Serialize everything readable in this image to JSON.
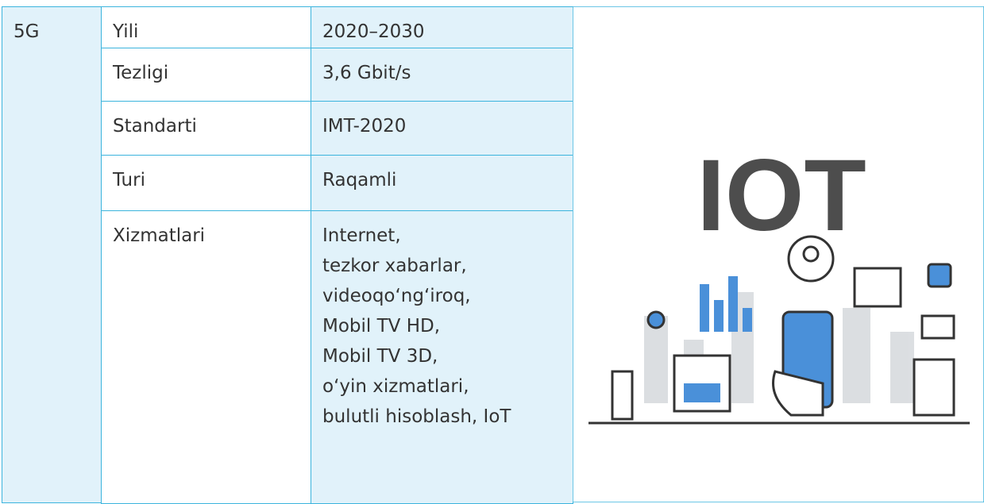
{
  "table": {
    "group": "5G",
    "rows": [
      [
        "Yili",
        "2020–2030"
      ],
      [
        "Tezligi",
        "3,6 Gbit/s"
      ],
      [
        "Standarti",
        "IMT-2020"
      ],
      [
        "Turi",
        "Raqamli"
      ],
      [
        "Xizmatlari",
        [
          "Internet,",
          "tezkor xabarlar,",
          "videoqo‘ng‘iroq,",
          "Mobil TV HD,",
          "Mobil TV 3D,",
          "o‘yin xizmatlari,",
          "bulutli hisoblash, IoT"
        ]
      ]
    ],
    "image": {
      "label": "IOT"
    }
  }
}
